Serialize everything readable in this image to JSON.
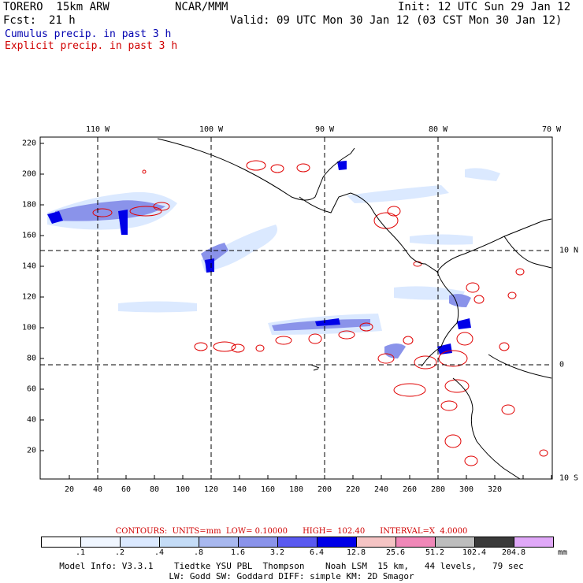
{
  "header": {
    "model": "TORERO  15km ARW",
    "org": "NCAR/MMM",
    "init": "Init: 12 UTC Sun 29 Jan 12",
    "fcst_label": "Fcst:",
    "fcst_value": "21 h",
    "valid": "Valid: 09 UTC Mon 30 Jan 12 (03 CST Mon 30 Jan 12)",
    "cumulus": "Cumulus precip. in past 3 h",
    "explicit": "Explicit precip. in past 3 h"
  },
  "map": {
    "x_ticks": [
      "20",
      "40",
      "60",
      "80",
      "100",
      "120",
      "140",
      "160",
      "180",
      "200",
      "220",
      "240",
      "260",
      "280",
      "300",
      "320"
    ],
    "y_ticks": [
      "20",
      "40",
      "60",
      "80",
      "100",
      "120",
      "140",
      "160",
      "180",
      "200",
      "220"
    ],
    "lon_labels": [
      "110 W",
      "100 W",
      "90 W",
      "80 W",
      "70 W"
    ],
    "lat_labels": [
      "10 N",
      "0",
      "10 S"
    ]
  },
  "contours": {
    "text": "CONTOURS:  UNITS=mm  LOW= 0.10000      HIGH=  102.40      INTERVAL=X  4.0000"
  },
  "colorbar": {
    "labels": [
      ".1",
      ".2",
      ".4",
      ".8",
      "1.6",
      "3.2",
      "6.4",
      "12.8",
      "25.6",
      "51.2",
      "102.4",
      "204.8"
    ],
    "unit": "mm",
    "colors": [
      "#ffffff",
      "#f0f6ff",
      "#dbe9ff",
      "#c4dcf7",
      "#a8b8ef",
      "#8a93ea",
      "#5a5af0",
      "#0000e8",
      "#f5c4c4",
      "#f088b8",
      "#bdbdbd",
      "#3a3a3a",
      "#e0a8f8"
    ]
  },
  "footer": {
    "line1": "Model Info: V3.3.1    Tiedtke YSU PBL  Thompson    Noah LSM  15 km,   44 levels,   79 sec",
    "line2": "LW: Godd SW: Goddard DIFF: simple KM: 2D Smagor"
  }
}
